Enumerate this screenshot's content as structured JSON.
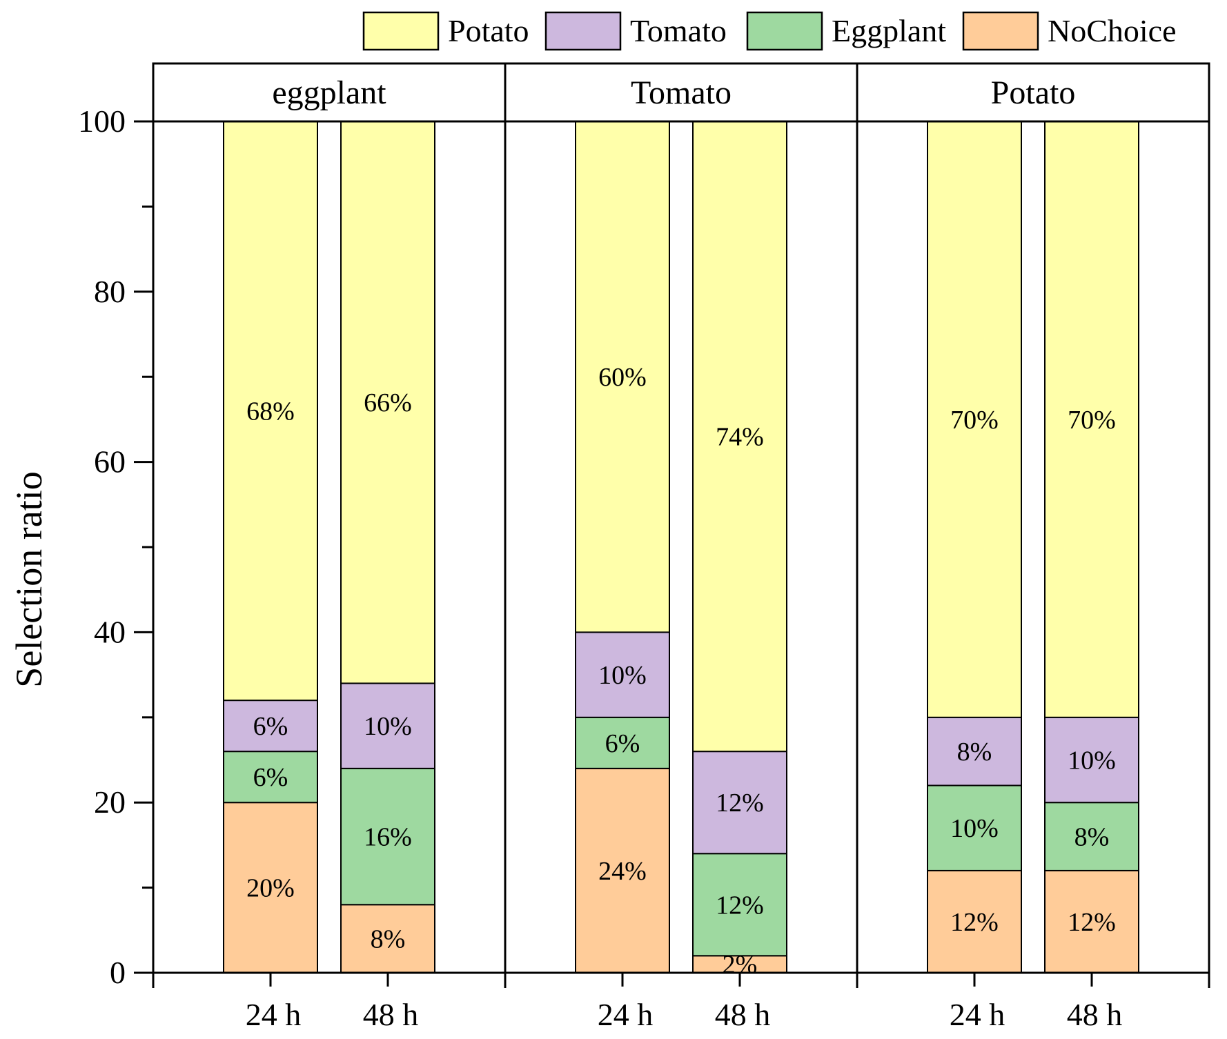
{
  "chart_data": {
    "type": "bar",
    "stacked": true,
    "ylabel": "Selection ratio",
    "ylim": [
      0,
      100
    ],
    "yticks": [
      0,
      20,
      40,
      60,
      80,
      100
    ],
    "categories": [
      "24 h",
      "48 h"
    ],
    "legend": [
      "Potato",
      "Tomato",
      "Eggplant",
      "NoChoice"
    ],
    "legend_position": "top-right",
    "colors": {
      "Potato": "#FFFFAA",
      "Tomato": "#CDB8DE",
      "Eggplant": "#9ED9A0",
      "NoChoice": "#FFCC99"
    },
    "panels": [
      {
        "title": "eggplant",
        "bars": [
          {
            "category": "24 h",
            "NoChoice": 20,
            "Eggplant": 6,
            "Tomato": 6,
            "Potato": 68
          },
          {
            "category": "48 h",
            "NoChoice": 8,
            "Eggplant": 16,
            "Tomato": 10,
            "Potato": 66
          }
        ]
      },
      {
        "title": "Tomato",
        "bars": [
          {
            "category": "24 h",
            "NoChoice": 24,
            "Eggplant": 6,
            "Tomato": 10,
            "Potato": 60
          },
          {
            "category": "48 h",
            "NoChoice": 2,
            "Eggplant": 12,
            "Tomato": 12,
            "Potato": 74
          }
        ]
      },
      {
        "title": "Potato",
        "bars": [
          {
            "category": "24 h",
            "NoChoice": 12,
            "Eggplant": 10,
            "Tomato": 8,
            "Potato": 70
          },
          {
            "category": "48 h",
            "NoChoice": 12,
            "Eggplant": 8,
            "Tomato": 10,
            "Potato": 70
          }
        ]
      }
    ]
  }
}
